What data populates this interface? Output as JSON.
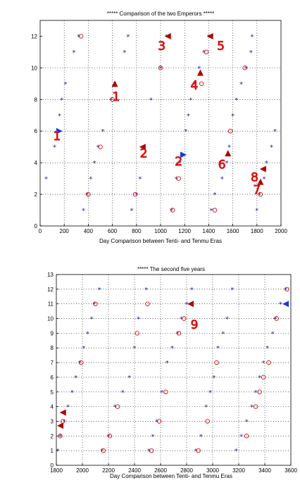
{
  "colors": {
    "star": "#1a1aa8",
    "circle": "#dd1111",
    "triangle_blue": "#1a3ad8",
    "triangle_red": "#b00000",
    "annotation": "#dd1111"
  },
  "chart_data": [
    {
      "type": "scatter",
      "title": "***** Comparison of the two Emperors *****",
      "xlabel": "Day Comparison between Tenti- and Tenmu Eras",
      "ylabel": "",
      "xlim": [
        0,
        2000
      ],
      "ylim": [
        0,
        13
      ],
      "xticks": [
        "0",
        "200",
        "400",
        "600",
        "800",
        "1000",
        "1200",
        "1400",
        "1600",
        "1800",
        "2000"
      ],
      "yticks": [
        "0",
        "2",
        "4",
        "6",
        "8",
        "10",
        "12"
      ],
      "grid": true,
      "stars": [
        [
          50,
          3
        ],
        [
          120,
          5
        ],
        [
          160,
          7
        ],
        [
          180,
          8
        ],
        [
          210,
          9
        ],
        [
          280,
          11
        ],
        [
          320,
          12
        ],
        [
          360,
          1
        ],
        [
          390,
          2
        ],
        [
          420,
          3
        ],
        [
          450,
          4
        ],
        [
          480,
          5
        ],
        [
          520,
          6
        ],
        [
          590,
          8
        ],
        [
          620,
          9
        ],
        [
          700,
          11
        ],
        [
          730,
          12
        ],
        [
          760,
          1
        ],
        [
          800,
          2
        ],
        [
          830,
          3
        ],
        [
          920,
          8
        ],
        [
          1000,
          10
        ],
        [
          1050,
          12
        ],
        [
          1090,
          1
        ],
        [
          1130,
          3
        ],
        [
          1160,
          4
        ],
        [
          1210,
          6
        ],
        [
          1230,
          7
        ],
        [
          1250,
          8
        ],
        [
          1280,
          9
        ],
        [
          1320,
          10
        ],
        [
          1360,
          11
        ],
        [
          1400,
          12
        ],
        [
          1420,
          1
        ],
        [
          1450,
          2
        ],
        [
          1510,
          3
        ],
        [
          1550,
          4
        ],
        [
          1570,
          5
        ],
        [
          1600,
          7
        ],
        [
          1630,
          8
        ],
        [
          1670,
          9
        ],
        [
          1710,
          10
        ],
        [
          1760,
          12
        ],
        [
          1800,
          1
        ],
        [
          1820,
          2
        ],
        [
          1860,
          3
        ],
        [
          1880,
          4
        ],
        [
          1920,
          5
        ],
        [
          1950,
          6
        ],
        [
          1750,
          11
        ]
      ],
      "circles": [
        [
          340,
          12
        ],
        [
          400,
          2
        ],
        [
          500,
          5
        ],
        [
          600,
          8
        ],
        [
          790,
          2
        ],
        [
          1000,
          10
        ],
        [
          1100,
          1
        ],
        [
          1150,
          3
        ],
        [
          1340,
          9
        ],
        [
          1380,
          11
        ],
        [
          1450,
          1
        ],
        [
          1580,
          6
        ],
        [
          1700,
          10
        ],
        [
          1830,
          2
        ]
      ],
      "triangles": [
        {
          "x": 160,
          "y": 6,
          "dir": "right",
          "color": "blue"
        },
        {
          "x": 620,
          "y": 9,
          "dir": "up",
          "color": "red"
        },
        {
          "x": 850,
          "y": 5,
          "dir": "left",
          "color": "red"
        },
        {
          "x": 1060,
          "y": 12,
          "dir": "left",
          "color": "red"
        },
        {
          "x": 1190,
          "y": 4.5,
          "dir": "right",
          "color": "blue"
        },
        {
          "x": 1410,
          "y": 12,
          "dir": "left",
          "color": "red"
        },
        {
          "x": 1330,
          "y": 9.7,
          "dir": "up",
          "color": "red"
        },
        {
          "x": 1560,
          "y": 4.6,
          "dir": "up",
          "color": "red"
        },
        {
          "x": 1850,
          "y": 3.6,
          "dir": "left",
          "color": "red"
        },
        {
          "x": 1830,
          "y": 2.8,
          "dir": "up",
          "color": "red"
        }
      ],
      "annotations": [
        {
          "text": "1",
          "x": 140,
          "y": 5.7
        },
        {
          "text": "1",
          "x": 630,
          "y": 8.2
        },
        {
          "text": "2",
          "x": 860,
          "y": 4.6
        },
        {
          "text": "2",
          "x": 1150,
          "y": 4.1
        },
        {
          "text": "3",
          "x": 1010,
          "y": 11.4
        },
        {
          "text": "4",
          "x": 1280,
          "y": 8.9
        },
        {
          "text": "5",
          "x": 1500,
          "y": 11.4
        },
        {
          "text": "6",
          "x": 1510,
          "y": 3.9
        },
        {
          "text": "8",
          "x": 1780,
          "y": 3.1
        },
        {
          "text": "7",
          "x": 1800,
          "y": 2.3
        }
      ]
    },
    {
      "type": "scatter",
      "title": "***** The second five years",
      "xlabel": "Day Comparison between Tenti- and Tenmu Eras",
      "ylabel": "",
      "xlim": [
        1800,
        3600
      ],
      "ylim": [
        0,
        13
      ],
      "xticks": [
        "1800",
        "2000",
        "2200",
        "2400",
        "2600",
        "2800",
        "3000",
        "3200",
        "3400",
        "3600"
      ],
      "yticks": [
        "0",
        "1",
        "2",
        "3",
        "4",
        "5",
        "6",
        "7",
        "8",
        "9",
        "10",
        "11",
        "12",
        "13"
      ],
      "grid": true,
      "stars": [
        [
          1810,
          1
        ],
        [
          1830,
          2
        ],
        [
          1860,
          3
        ],
        [
          1890,
          4
        ],
        [
          1920,
          5
        ],
        [
          1950,
          6
        ],
        [
          1980,
          7
        ],
        [
          2010,
          8
        ],
        [
          2040,
          9
        ],
        [
          2070,
          10
        ],
        [
          2090,
          11
        ],
        [
          2130,
          12
        ],
        [
          2150,
          1
        ],
        [
          2200,
          2
        ],
        [
          2250,
          4
        ],
        [
          2310,
          5
        ],
        [
          2360,
          6
        ],
        [
          2400,
          8
        ],
        [
          2430,
          10
        ],
        [
          2490,
          12
        ],
        [
          2510,
          1
        ],
        [
          2540,
          2
        ],
        [
          2570,
          3
        ],
        [
          2610,
          5
        ],
        [
          2650,
          7
        ],
        [
          2690,
          8
        ],
        [
          2730,
          9
        ],
        [
          2760,
          10
        ],
        [
          2800,
          11
        ],
        [
          2840,
          12
        ],
        [
          2870,
          1
        ],
        [
          2910,
          2
        ],
        [
          2950,
          4
        ],
        [
          2980,
          5
        ],
        [
          3010,
          6
        ],
        [
          3040,
          8
        ],
        [
          3080,
          9
        ],
        [
          3110,
          10
        ],
        [
          3150,
          12
        ],
        [
          3180,
          1
        ],
        [
          3220,
          2
        ],
        [
          3260,
          3
        ],
        [
          3300,
          4
        ],
        [
          3330,
          5
        ],
        [
          3360,
          6
        ],
        [
          3390,
          7
        ],
        [
          3420,
          8
        ],
        [
          3460,
          9
        ],
        [
          3480,
          10
        ],
        [
          3520,
          11
        ],
        [
          3560,
          12
        ]
      ],
      "circles": [
        [
          1830,
          2
        ],
        [
          1850,
          3
        ],
        [
          1990,
          7
        ],
        [
          2100,
          11
        ],
        [
          2160,
          1
        ],
        [
          2210,
          2
        ],
        [
          2270,
          4
        ],
        [
          2500,
          11
        ],
        [
          2420,
          9
        ],
        [
          2590,
          3
        ],
        [
          2640,
          5
        ],
        [
          2740,
          9
        ],
        [
          2780,
          10
        ],
        [
          2890,
          1
        ],
        [
          2960,
          3
        ],
        [
          3030,
          7
        ],
        [
          3260,
          2
        ],
        [
          3330,
          4
        ],
        [
          3360,
          5
        ],
        [
          3390,
          6
        ],
        [
          3430,
          7
        ],
        [
          3490,
          10
        ],
        [
          3570,
          12
        ],
        [
          2530,
          1
        ]
      ],
      "triangles": [
        {
          "x": 1850,
          "y": 3.6,
          "dir": "left",
          "color": "red"
        },
        {
          "x": 1830,
          "y": 2.7,
          "dir": "left",
          "color": "red"
        },
        {
          "x": 2830,
          "y": 11,
          "dir": "left",
          "color": "red"
        },
        {
          "x": 3560,
          "y": 11,
          "dir": "left",
          "color": "blue"
        }
      ],
      "annotations": [
        {
          "text": "9",
          "x": 2860,
          "y": 9.6
        }
      ]
    }
  ]
}
